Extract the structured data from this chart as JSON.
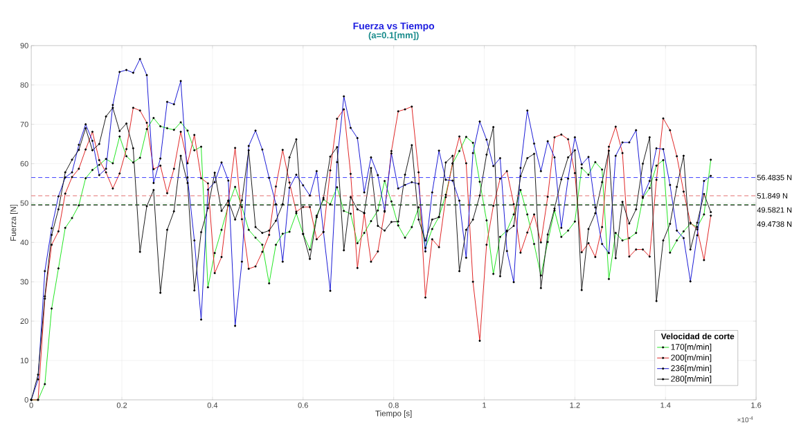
{
  "chart_data": {
    "type": "line",
    "title": "Fuerza vs Tiempo",
    "subtitle": "(a=0.1[mm])",
    "xlabel": "Tiempo [s]",
    "ylabel": "Fuerza [N]",
    "legend_title": "Velocidad de corte",
    "x": [
      0,
      0.015,
      0.03,
      0.045,
      0.06,
      0.075,
      0.09,
      0.105,
      0.12,
      0.135,
      0.15,
      0.165,
      0.18,
      0.195,
      0.21,
      0.225,
      0.24,
      0.255,
      0.27,
      0.285,
      0.3,
      0.315,
      0.33,
      0.345,
      0.36,
      0.375,
      0.39,
      0.405,
      0.42,
      0.435,
      0.45,
      0.465,
      0.48,
      0.495,
      0.51,
      0.525,
      0.54,
      0.555,
      0.57,
      0.585,
      0.6,
      0.615,
      0.63,
      0.645,
      0.66,
      0.675,
      0.69,
      0.705,
      0.72,
      0.735,
      0.75,
      0.765,
      0.78,
      0.795,
      0.81,
      0.825,
      0.84,
      0.855,
      0.87,
      0.885,
      0.9,
      0.915,
      0.93,
      0.945,
      0.96,
      0.975,
      0.99,
      1.005,
      1.02,
      1.035,
      1.05,
      1.065,
      1.08,
      1.095,
      1.11,
      1.125,
      1.14,
      1.155,
      1.17,
      1.185,
      1.2,
      1.215,
      1.23,
      1.245,
      1.26,
      1.275,
      1.29,
      1.305,
      1.32,
      1.335,
      1.35,
      1.365,
      1.38,
      1.395,
      1.41,
      1.425,
      1.44,
      1.455,
      1.47,
      1.485,
      1.5
    ],
    "series": [
      {
        "name": "170[m/min]",
        "color": "#22e622",
        "values": [
          0,
          0,
          4,
          23.2,
          33.4,
          43.7,
          46.2,
          49.4,
          56.3,
          58.4,
          59.7,
          61.2,
          60.1,
          66.9,
          61.9,
          60.3,
          61.5,
          68.8,
          71.6,
          69.5,
          69,
          68.6,
          70.5,
          68.4,
          63.4,
          64.3,
          28.6,
          37.3,
          43.2,
          49.4,
          54.1,
          49,
          43.2,
          41.2,
          39.4,
          29.6,
          39.4,
          42.2,
          42.7,
          47.4,
          42.2,
          38.2,
          46.8,
          50.9,
          49.7,
          54,
          48,
          47.3,
          39.8,
          42.4,
          45.4,
          48.1,
          55.6,
          50.4,
          44.3,
          41.2,
          43.9,
          48.9,
          38.6,
          43.4,
          46.5,
          52.1,
          60,
          63.2,
          66.8,
          65.3,
          55.4,
          45.6,
          32,
          41.4,
          43,
          47.1,
          53.3,
          47.1,
          39.6,
          31.6,
          40.1,
          48.1,
          41.4,
          43,
          45.3,
          58.9,
          57.2,
          60.4,
          58.5,
          30.7,
          42.4,
          40.5,
          41.1,
          42.4,
          51.3,
          53.8,
          59.5,
          60.9,
          37.4,
          40.5,
          42.8,
          44.8,
          43.9,
          47.1,
          61
        ]
      },
      {
        "name": "200[m/min]",
        "color": "#e02626",
        "values": [
          0,
          0,
          25.7,
          39.4,
          42.8,
          52.4,
          56.6,
          58.7,
          63.6,
          68.1,
          60.9,
          57.8,
          53.7,
          57.5,
          63.7,
          74.2,
          73.5,
          70.4,
          58.6,
          59.5,
          52.5,
          58.7,
          68.1,
          60.1,
          67.3,
          56.3,
          55,
          32.2,
          36.3,
          50.6,
          64,
          45.9,
          33.3,
          33.9,
          37.6,
          41.9,
          54.2,
          63.5,
          55.2,
          47.8,
          49,
          49,
          40.8,
          42.6,
          58.3,
          71.4,
          73.8,
          57.4,
          33.5,
          47.4,
          35.1,
          37.7,
          47.8,
          63.2,
          73.3,
          73.8,
          74.5,
          57.8,
          26,
          40.8,
          38.8,
          51.5,
          60.1,
          66.9,
          60.1,
          30,
          15,
          39.4,
          49.3,
          56.2,
          58.1,
          49.7,
          37.4,
          42.5,
          47.1,
          40,
          51.6,
          66.7,
          67.4,
          66.2,
          57.6,
          37.5,
          39.8,
          36.3,
          43.9,
          64.3,
          69.4,
          62.7,
          36.4,
          38.2,
          38.2,
          36.4,
          55.9,
          71.5,
          68.5,
          61.9,
          52.9,
          45,
          43.3,
          35.5,
          46.8
        ]
      },
      {
        "name": "236[m/min]",
        "color": "#1a1ad6",
        "values": [
          0,
          5.2,
          32.7,
          43.6,
          51.7,
          56.5,
          57.8,
          64.8,
          70,
          65.8,
          57.1,
          58.7,
          74.9,
          83.3,
          83.8,
          83.1,
          86.6,
          82.5,
          55.1,
          61.3,
          75.7,
          75.1,
          81,
          56.5,
          40.5,
          20.4,
          53.4,
          55.3,
          60.3,
          55.7,
          18.8,
          35.1,
          64.5,
          68.4,
          63.6,
          56.4,
          49.7,
          35.1,
          53.9,
          57.2,
          54.5,
          51.9,
          58.1,
          42.7,
          27.7,
          60.4,
          77.1,
          69.1,
          66.5,
          52.7,
          61.6,
          57.1,
          48,
          62.6,
          53.7,
          54.6,
          55.3,
          54.9,
          37.7,
          52.7,
          63.3,
          55.9,
          55.7,
          50.6,
          36.1,
          62.7,
          70.7,
          66.1,
          59.4,
          61.4,
          37.8,
          29.9,
          58.9,
          73.5,
          65.1,
          58.1,
          65.7,
          61.6,
          43.7,
          56.2,
          66.7,
          59.8,
          61.7,
          48.9,
          39.6,
          37.3,
          62,
          65.4,
          65.4,
          68.5,
          51.6,
          55.6,
          63.9,
          63.7,
          54.6,
          43,
          41.1,
          30.1,
          41.8,
          55.6,
          56.9
        ]
      },
      {
        "name": "280[m/min]",
        "color": "#1a1a1a",
        "values": [
          0,
          6.4,
          26.3,
          41.9,
          48.4,
          57.8,
          61,
          63.5,
          69,
          63.4,
          65,
          72,
          74.2,
          68.3,
          70.2,
          63.9,
          37.6,
          49.2,
          53.3,
          27.2,
          43.2,
          47.9,
          62,
          55.1,
          27.8,
          42.6,
          48.7,
          57.7,
          48,
          50.6,
          45.8,
          50.7,
          63.4,
          43.9,
          42.4,
          43,
          45.5,
          49.7,
          61.6,
          66.2,
          42.1,
          35.8,
          46.4,
          51.3,
          61.8,
          64.2,
          38,
          51.5,
          48.4,
          47.5,
          58.9,
          44.2,
          43,
          45.2,
          45.3,
          57.2,
          64.7,
          45.8,
          40.5,
          45.8,
          46.4,
          60.3,
          62,
          32.7,
          43.2,
          45.8,
          51.9,
          62.3,
          69.3,
          31.4,
          42.8,
          44.2,
          56.8,
          61.4,
          62.5,
          28.4,
          42,
          48.6,
          56,
          61.6,
          63.4,
          27.9,
          43.4,
          47.4,
          55.3,
          63.3,
          36,
          50.3,
          44.8,
          48.4,
          60,
          66.7,
          25.1,
          40.5,
          44.7,
          54.1,
          62,
          38.2,
          45,
          52.3,
          47.7
        ]
      }
    ],
    "ref_lines": [
      {
        "axis": "y",
        "value": 56.4835,
        "label": "56.4835 N",
        "color": "#2a2aff",
        "line_style": "dashed"
      },
      {
        "axis": "y",
        "value": 51.849,
        "label": "51.849 N",
        "color": "#e06060",
        "line_style": "dashed"
      },
      {
        "axis": "y",
        "value": 49.5821,
        "label": "49.5821 N",
        "color": "#1a7a1a",
        "line_style": "dashed"
      },
      {
        "axis": "y",
        "value": 49.4738,
        "label": "49.4738 N",
        "color": "#222222",
        "line_style": "dashed"
      }
    ],
    "annotations": [
      "×10$^{-4}$"
    ],
    "xlim": [
      0,
      1.6
    ],
    "ylim": [
      0,
      90
    ],
    "xticks": [
      0,
      0.2,
      0.4,
      0.6,
      0.8,
      1,
      1.2,
      1.4,
      1.6
    ],
    "yticks": [
      0,
      10,
      20,
      30,
      40,
      50,
      60,
      70,
      80,
      90
    ],
    "grid": true,
    "legend": "bottom right",
    "marker": "circle",
    "line_style": "solid"
  }
}
